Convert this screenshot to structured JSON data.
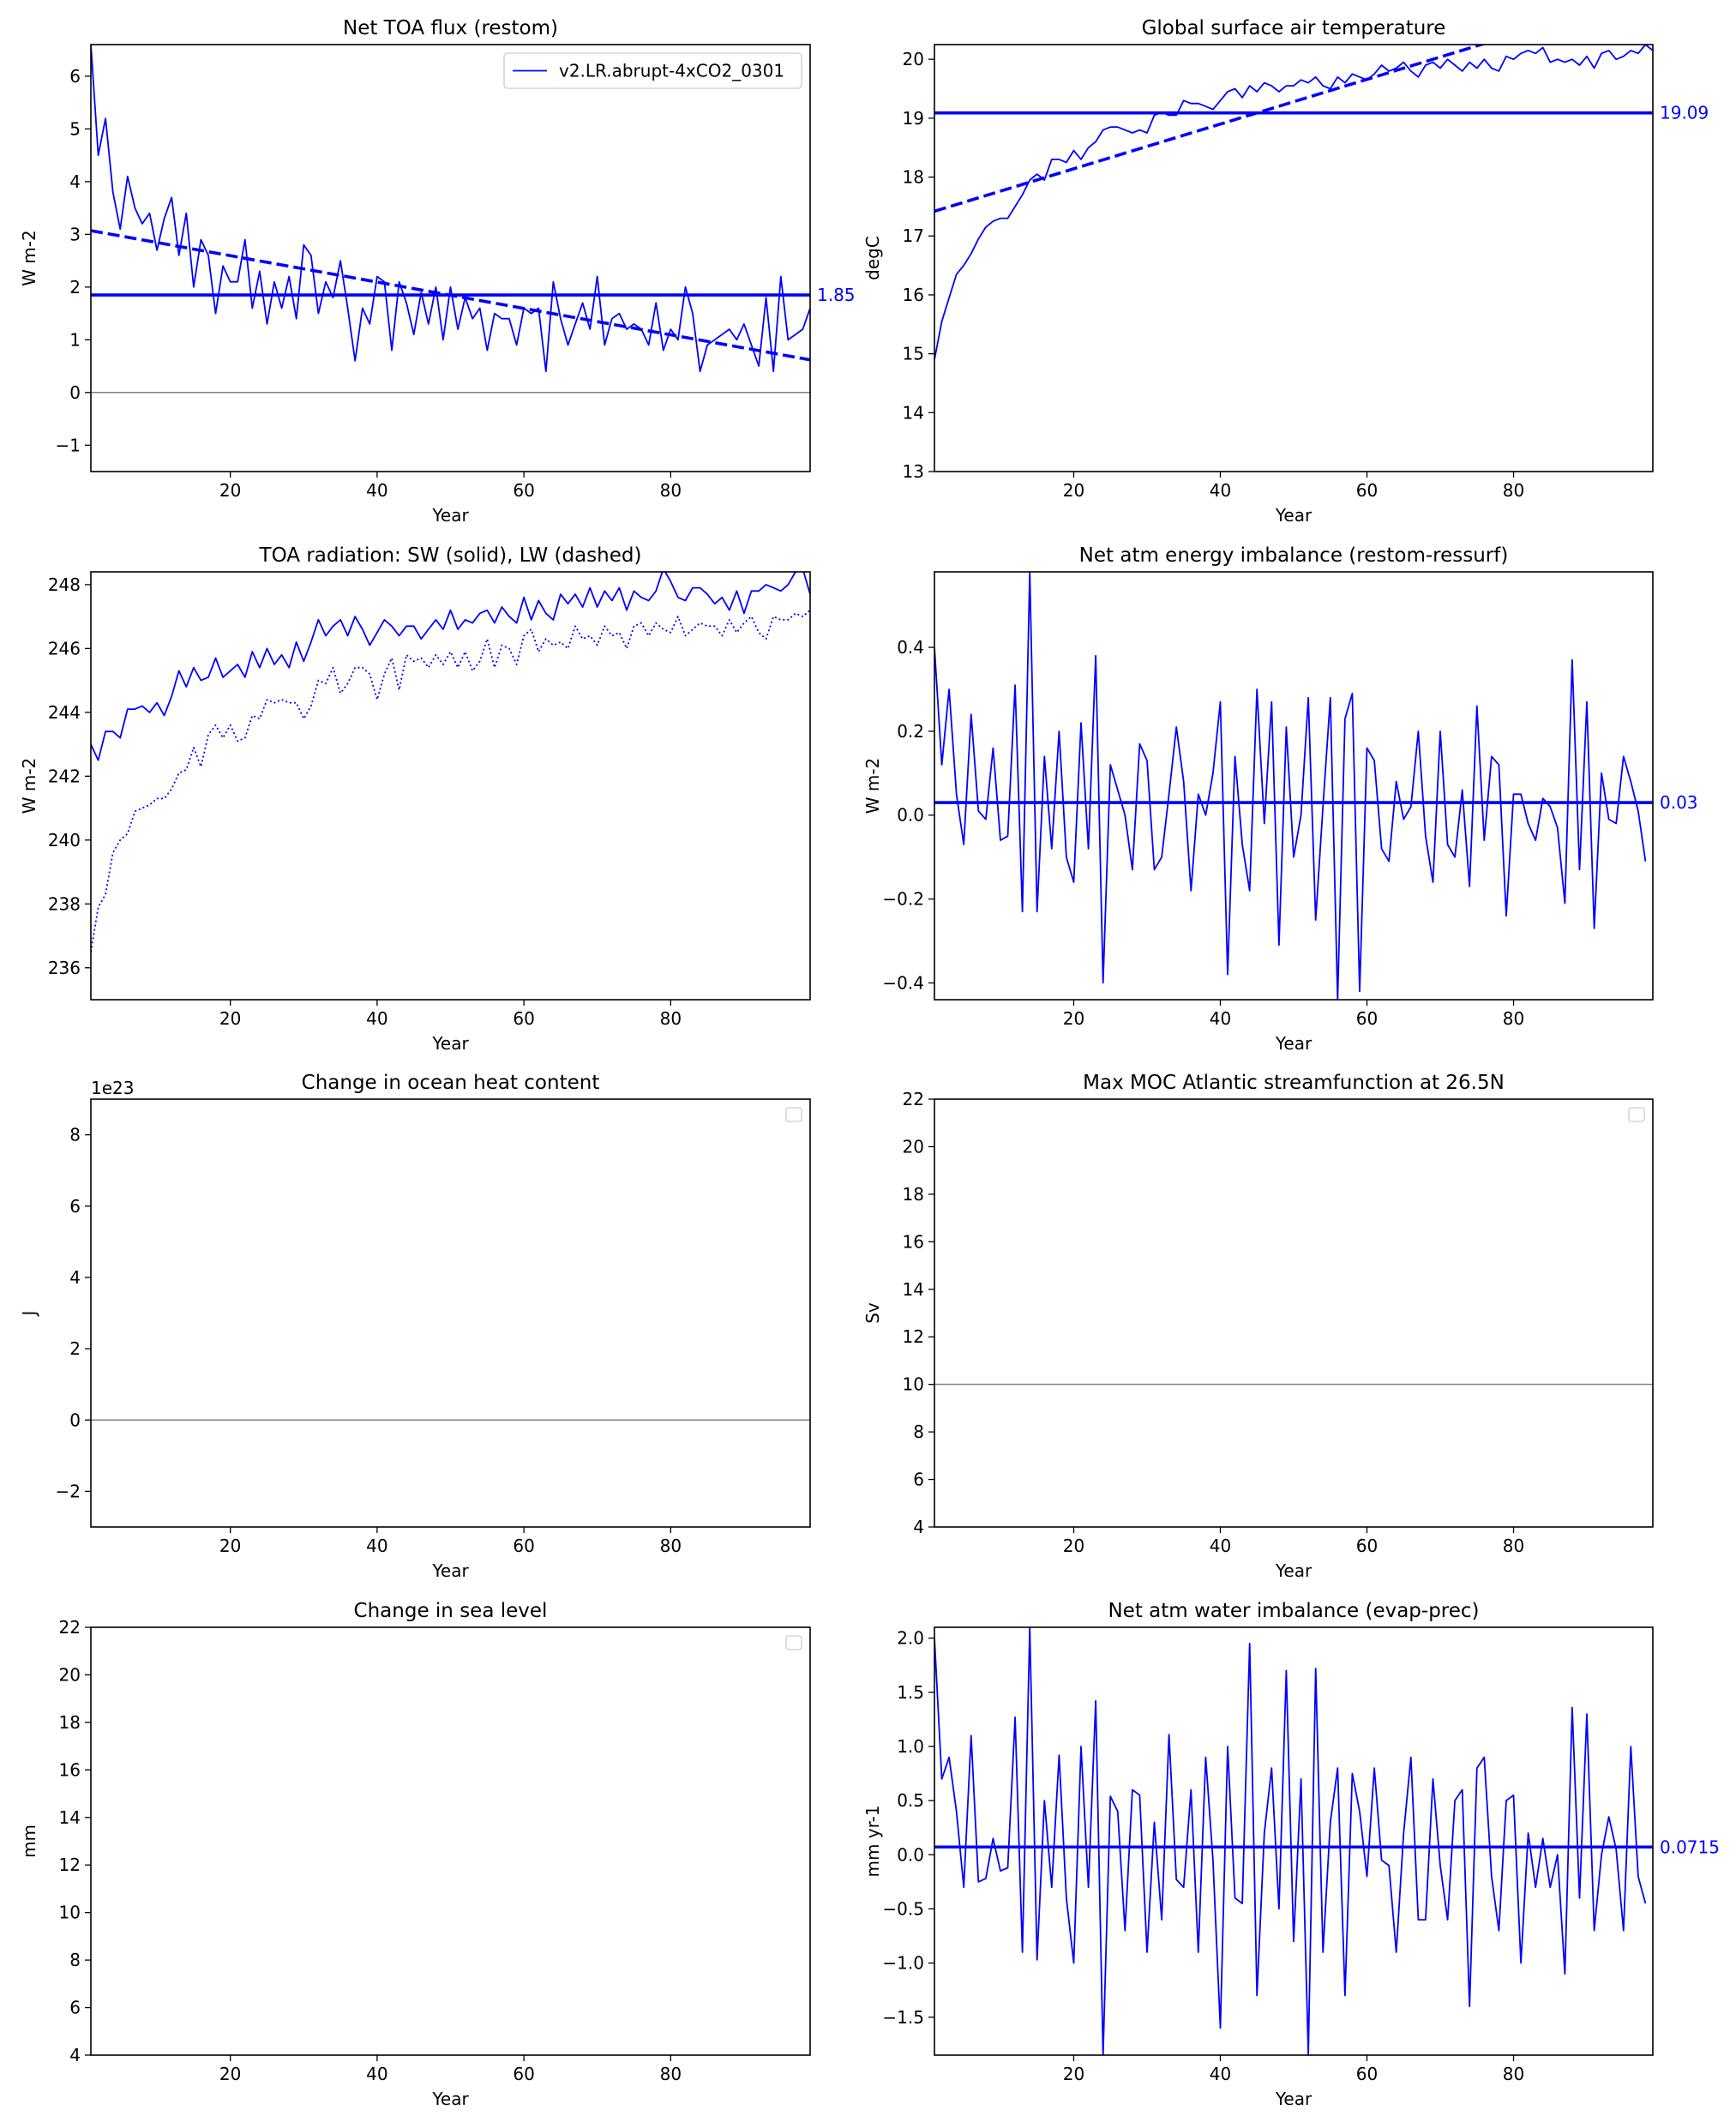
{
  "chart_data": [
    {
      "type": "line",
      "title": "Net TOA flux (restom)",
      "xlabel": "Year",
      "ylabel": "W m-2",
      "xlim": [
        1,
        99
      ],
      "ylim": [
        -1.5,
        6.6
      ],
      "xticks": [
        "20",
        "40",
        "60",
        "80"
      ],
      "yticks": [
        "−1",
        "0",
        "1",
        "2",
        "3",
        "4",
        "5",
        "6"
      ],
      "legend": {
        "placement": "top-right",
        "entries": [
          "v2.LR.abrupt-4xCO2_0301"
        ]
      },
      "color": "#0000ff",
      "x_start": 1,
      "series": [
        {
          "name": "v2.LR.abrupt-4xCO2_0301",
          "style": "solid",
          "values": [
            6.6,
            4.5,
            5.2,
            3.8,
            3.1,
            4.1,
            3.5,
            3.2,
            3.4,
            2.7,
            3.3,
            3.7,
            2.6,
            3.4,
            2.0,
            2.9,
            2.6,
            1.5,
            2.4,
            2.1,
            2.1,
            2.9,
            1.6,
            2.3,
            1.3,
            2.1,
            1.6,
            2.2,
            1.4,
            2.8,
            2.6,
            1.5,
            2.1,
            1.8,
            2.5,
            1.6,
            0.6,
            1.6,
            1.3,
            2.2,
            2.1,
            0.8,
            2.1,
            1.7,
            1.1,
            1.9,
            1.3,
            2.0,
            1.0,
            2.0,
            1.2,
            1.8,
            1.4,
            1.6,
            0.8,
            1.5,
            1.4,
            1.4,
            0.9,
            1.6,
            1.5,
            1.6,
            0.4,
            2.1,
            1.4,
            0.9,
            1.3,
            1.7,
            1.2,
            2.2,
            0.9,
            1.4,
            1.5,
            1.2,
            1.3,
            1.2,
            0.9,
            1.7,
            0.8,
            1.2,
            1.0,
            2.0,
            1.5,
            0.4,
            0.9,
            1.0,
            1.1,
            1.2,
            1.0,
            1.3,
            0.9,
            0.5,
            1.8,
            0.4,
            2.2,
            1.0,
            1.1,
            1.2,
            1.6
          ]
        },
        {
          "name": "",
          "style": "dashed",
          "x": [
            1,
            99
          ],
          "values": [
            3.07,
            0.62
          ]
        }
      ],
      "hline_mean": {
        "value": 1.85,
        "label": "1.85"
      },
      "ref_line": 0
    },
    {
      "type": "line",
      "title": "Global surface air temperature",
      "xlabel": "Year",
      "ylabel": "degC",
      "xlim": [
        1,
        99
      ],
      "ylim": [
        13,
        20.25
      ],
      "xticks": [
        "20",
        "40",
        "60",
        "80"
      ],
      "yticks": [
        "13",
        "14",
        "15",
        "16",
        "17",
        "18",
        "19",
        "20"
      ],
      "color": "#0000ff",
      "x_start": 1,
      "series": [
        {
          "name": "",
          "style": "solid",
          "values": [
            14.9,
            15.55,
            15.95,
            16.35,
            16.5,
            16.7,
            16.95,
            17.15,
            17.25,
            17.3,
            17.3,
            17.5,
            17.7,
            17.95,
            18.05,
            17.95,
            18.3,
            18.3,
            18.25,
            18.45,
            18.3,
            18.5,
            18.6,
            18.8,
            18.85,
            18.85,
            18.8,
            18.75,
            18.8,
            18.75,
            19.05,
            19.1,
            19.05,
            19.05,
            19.3,
            19.25,
            19.25,
            19.2,
            19.15,
            19.3,
            19.45,
            19.5,
            19.35,
            19.55,
            19.45,
            19.6,
            19.55,
            19.45,
            19.55,
            19.55,
            19.65,
            19.6,
            19.7,
            19.55,
            19.5,
            19.7,
            19.6,
            19.75,
            19.7,
            19.65,
            19.75,
            19.9,
            19.8,
            19.85,
            19.95,
            19.8,
            19.7,
            19.9,
            19.95,
            19.85,
            20.0,
            19.9,
            19.8,
            19.95,
            19.85,
            20.0,
            19.85,
            19.8,
            20.05,
            20.0,
            20.1,
            20.15,
            20.1,
            20.2,
            19.95,
            20.0,
            19.95,
            20.0,
            19.9,
            20.05,
            19.85,
            20.1,
            20.15,
            20.0,
            20.05,
            20.15,
            20.1,
            20.25,
            20.15
          ]
        },
        {
          "name": "",
          "style": "dashed",
          "x": [
            1,
            99
          ],
          "values": [
            17.42,
            21.14
          ]
        }
      ],
      "hline_mean": {
        "value": 19.09,
        "label": "19.09"
      }
    },
    {
      "type": "line",
      "title": "TOA radiation: SW (solid), LW (dashed)",
      "xlabel": "Year",
      "ylabel": "W m-2",
      "xlim": [
        1,
        99
      ],
      "ylim": [
        235,
        248.4
      ],
      "xticks": [
        "20",
        "40",
        "60",
        "80"
      ],
      "yticks": [
        "236",
        "238",
        "240",
        "242",
        "244",
        "246",
        "248"
      ],
      "color": "#0000ff",
      "x_start": 1,
      "series": [
        {
          "name": "SW",
          "style": "solid",
          "values": [
            243.0,
            242.5,
            243.4,
            243.4,
            243.2,
            244.1,
            244.1,
            244.2,
            244.0,
            244.3,
            243.9,
            244.5,
            245.3,
            244.8,
            245.4,
            245.0,
            245.1,
            245.7,
            245.1,
            245.3,
            245.5,
            245.1,
            245.9,
            245.4,
            246.0,
            245.5,
            245.8,
            245.4,
            246.2,
            245.6,
            246.2,
            246.9,
            246.4,
            246.7,
            246.9,
            246.4,
            247.0,
            246.6,
            246.1,
            246.5,
            246.9,
            246.7,
            246.4,
            246.7,
            246.7,
            246.3,
            246.6,
            246.9,
            246.6,
            247.2,
            246.6,
            246.9,
            246.8,
            247.1,
            247.2,
            246.8,
            247.3,
            247.0,
            246.8,
            247.6,
            246.9,
            247.5,
            247.1,
            246.9,
            247.7,
            247.4,
            247.7,
            247.3,
            247.9,
            247.3,
            247.8,
            247.5,
            247.9,
            247.2,
            247.8,
            247.6,
            247.5,
            247.8,
            248.5,
            248.1,
            247.6,
            247.5,
            247.9,
            247.9,
            247.7,
            247.4,
            247.6,
            247.2,
            247.8,
            247.1,
            247.8,
            247.8,
            248.0,
            247.9,
            247.8,
            248.0,
            248.4,
            248.5,
            247.7
          ]
        },
        {
          "name": "LW",
          "style": "dotted",
          "values": [
            236.5,
            237.9,
            238.3,
            239.6,
            240.0,
            240.2,
            240.9,
            241.0,
            241.1,
            241.3,
            241.3,
            241.6,
            242.1,
            242.2,
            242.9,
            242.3,
            243.3,
            243.6,
            243.2,
            243.6,
            243.1,
            243.2,
            243.9,
            243.8,
            244.4,
            244.3,
            244.4,
            244.3,
            244.3,
            243.8,
            244.2,
            245.0,
            244.9,
            245.4,
            244.6,
            244.9,
            245.4,
            245.4,
            245.2,
            244.4,
            245.2,
            245.7,
            244.7,
            245.8,
            245.6,
            245.7,
            245.4,
            245.8,
            245.5,
            245.9,
            245.4,
            245.9,
            245.3,
            245.6,
            246.3,
            245.4,
            246.1,
            246.0,
            245.5,
            246.4,
            246.6,
            245.9,
            246.3,
            246.1,
            246.2,
            246.0,
            246.7,
            246.3,
            246.4,
            246.1,
            246.7,
            246.4,
            246.5,
            246.0,
            246.7,
            246.8,
            246.4,
            246.8,
            246.6,
            246.5,
            247.0,
            246.4,
            246.6,
            246.8,
            246.7,
            246.7,
            246.4,
            246.9,
            246.5,
            246.8,
            247.0,
            246.5,
            246.3,
            247.0,
            246.9,
            246.9,
            247.1,
            247.0,
            247.2
          ]
        }
      ]
    },
    {
      "type": "line",
      "title": "Net atm energy imbalance (restom-ressurf)",
      "xlabel": "Year",
      "ylabel": "W m-2",
      "xlim": [
        1,
        99
      ],
      "ylim": [
        -0.44,
        0.58
      ],
      "xticks": [
        "20",
        "40",
        "60",
        "80"
      ],
      "yticks": [
        "−0.4",
        "−0.2",
        "0.0",
        "0.2",
        "0.4"
      ],
      "color": "#0000ff",
      "x_start": 1,
      "series": [
        {
          "name": "",
          "style": "solid",
          "values": [
            0.4,
            0.12,
            0.3,
            0.05,
            -0.07,
            0.24,
            0.01,
            -0.01,
            0.16,
            -0.06,
            -0.05,
            0.31,
            -0.23,
            0.58,
            -0.23,
            0.14,
            -0.08,
            0.2,
            -0.1,
            -0.16,
            0.22,
            -0.08,
            0.38,
            -0.4,
            0.12,
            0.06,
            0.0,
            -0.13,
            0.17,
            0.13,
            -0.13,
            -0.1,
            0.05,
            0.21,
            0.08,
            -0.18,
            0.05,
            0.0,
            0.1,
            0.27,
            -0.38,
            0.14,
            -0.07,
            -0.18,
            0.3,
            -0.02,
            0.27,
            -0.31,
            0.21,
            -0.1,
            0.0,
            0.28,
            -0.25,
            0.02,
            0.28,
            -0.44,
            0.23,
            0.29,
            -0.42,
            0.16,
            0.13,
            -0.08,
            -0.11,
            0.08,
            -0.01,
            0.02,
            0.2,
            -0.05,
            -0.16,
            0.2,
            -0.07,
            -0.1,
            0.06,
            -0.17,
            0.26,
            -0.06,
            0.14,
            0.12,
            -0.24,
            0.05,
            0.05,
            -0.02,
            -0.06,
            0.04,
            0.02,
            -0.03,
            -0.21,
            0.37,
            -0.13,
            0.27,
            -0.27,
            0.1,
            -0.01,
            -0.02,
            0.14,
            0.08,
            0.01,
            -0.11
          ]
        }
      ],
      "hline_mean": {
        "value": 0.03,
        "label": "0.03"
      }
    },
    {
      "type": "line",
      "title": "Change in ocean heat content",
      "xlabel": "Year",
      "ylabel": "J",
      "xlim": [
        1,
        99
      ],
      "ylim": [
        -3,
        9
      ],
      "offset_label": "1e23",
      "xticks": [
        "20",
        "40",
        "60",
        "80"
      ],
      "yticks": [
        "−2",
        "0",
        "2",
        "4",
        "6",
        "8"
      ],
      "legend": {
        "placement": "top-right",
        "entries": []
      },
      "series": [],
      "ref_line": 0
    },
    {
      "type": "line",
      "title": "Max MOC Atlantic streamfunction at 26.5N",
      "xlabel": "Year",
      "ylabel": "Sv",
      "xlim": [
        1,
        99
      ],
      "ylim": [
        4,
        22
      ],
      "xticks": [
        "20",
        "40",
        "60",
        "80"
      ],
      "yticks": [
        "4",
        "6",
        "8",
        "10",
        "12",
        "14",
        "16",
        "18",
        "20",
        "22"
      ],
      "legend": {
        "placement": "top-right",
        "entries": []
      },
      "series": [],
      "ref_line": 10
    },
    {
      "type": "line",
      "title": "Change in sea level",
      "xlabel": "Year",
      "ylabel": "mm",
      "xlim": [
        1,
        99
      ],
      "ylim": [
        4,
        22
      ],
      "xticks": [
        "20",
        "40",
        "60",
        "80"
      ],
      "yticks": [
        "4",
        "6",
        "8",
        "10",
        "12",
        "14",
        "16",
        "18",
        "20",
        "22"
      ],
      "legend": {
        "placement": "top-right",
        "entries": []
      },
      "series": []
    },
    {
      "type": "line",
      "title": "Net atm water imbalance (evap-prec)",
      "xlabel": "Year",
      "ylabel": "mm yr-1",
      "xlim": [
        1,
        99
      ],
      "ylim": [
        -1.85,
        2.1
      ],
      "xticks": [
        "20",
        "40",
        "60",
        "80"
      ],
      "yticks": [
        "−1.5",
        "−1.0",
        "−0.5",
        "0.0",
        "0.5",
        "1.0",
        "1.5",
        "2.0"
      ],
      "color": "#0000ff",
      "x_start": 1,
      "series": [
        {
          "name": "",
          "style": "solid",
          "values": [
            2.0,
            0.7,
            0.9,
            0.4,
            -0.3,
            1.1,
            -0.25,
            -0.22,
            0.15,
            -0.15,
            -0.12,
            1.27,
            -0.9,
            2.1,
            -0.97,
            0.5,
            -0.3,
            0.92,
            -0.4,
            -1.0,
            1.0,
            -0.3,
            1.42,
            -1.85,
            0.54,
            0.4,
            -0.7,
            0.6,
            0.55,
            -0.9,
            0.3,
            -0.6,
            1.11,
            -0.23,
            -0.3,
            0.6,
            -0.9,
            0.9,
            -0.05,
            -1.6,
            1.0,
            -0.4,
            -0.45,
            1.95,
            -1.3,
            0.2,
            0.8,
            -0.5,
            1.7,
            -0.8,
            0.7,
            -1.84,
            1.72,
            -0.9,
            0.3,
            0.8,
            -1.3,
            0.75,
            0.4,
            -0.2,
            0.8,
            -0.05,
            -0.1,
            -0.9,
            0.2,
            0.9,
            -0.6,
            -0.6,
            0.7,
            -0.1,
            -0.6,
            0.5,
            0.6,
            -1.4,
            0.8,
            0.9,
            -0.2,
            -0.7,
            0.5,
            0.55,
            -1.0,
            0.2,
            -0.3,
            0.15,
            -0.3,
            0.0,
            -1.1,
            1.36,
            -0.4,
            1.3,
            -0.7,
            0.0,
            0.35,
            0.05,
            -0.7,
            1.0,
            -0.2,
            -0.45
          ]
        }
      ],
      "hline_mean": {
        "value": 0.0715,
        "label": "0.0715"
      }
    }
  ]
}
